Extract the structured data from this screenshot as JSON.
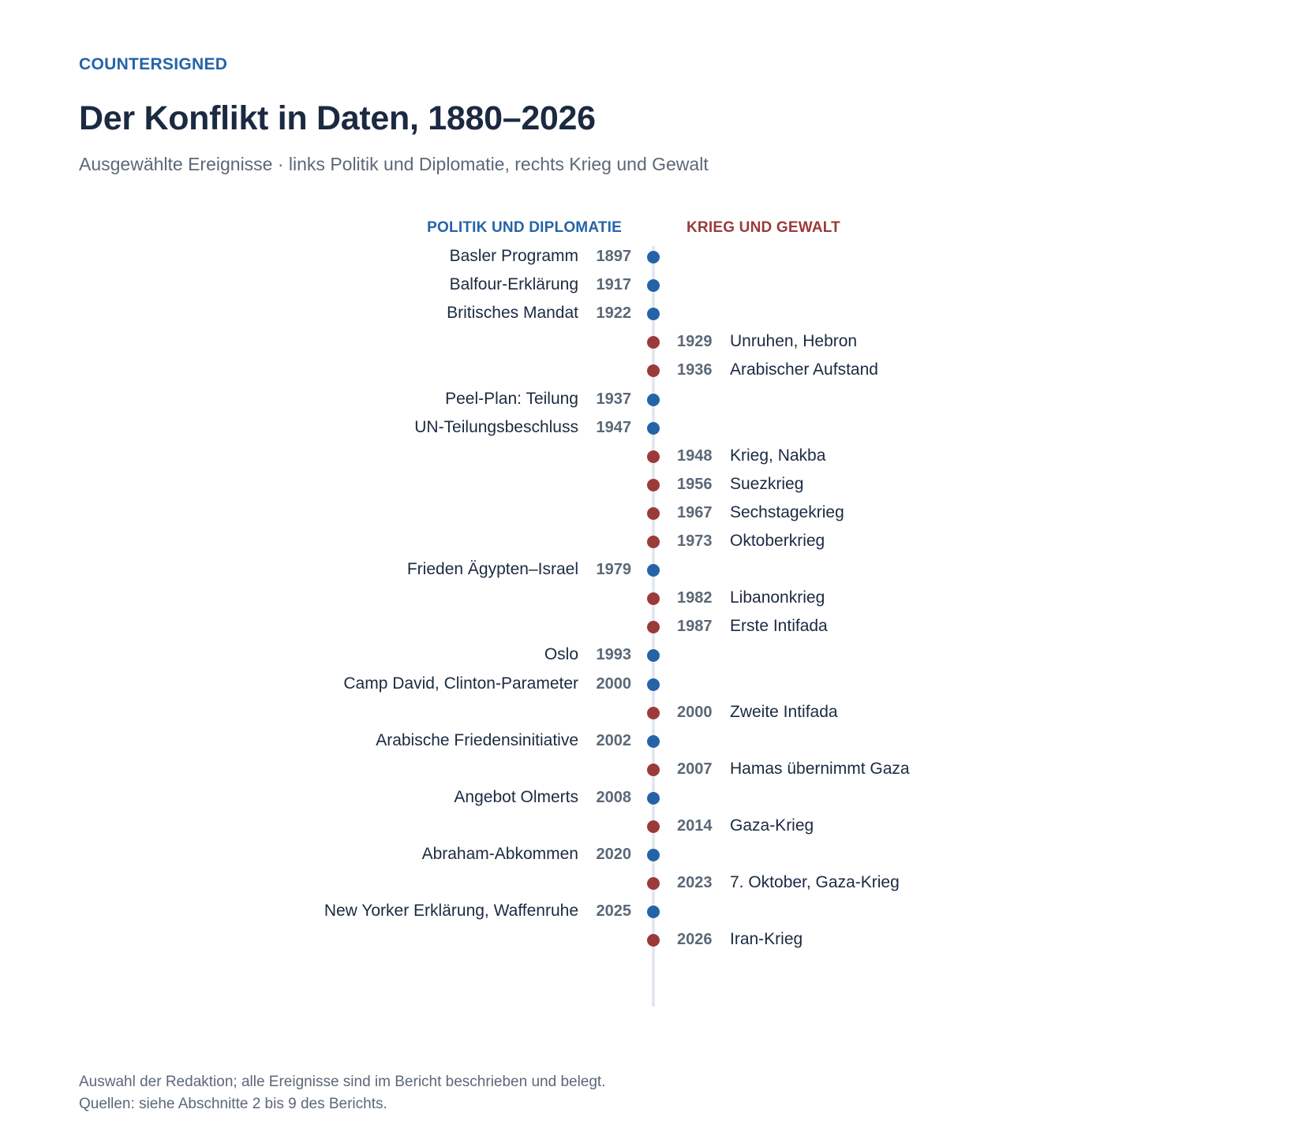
{
  "header": {
    "brand": "COUNTERSIGNED",
    "title": "Der Konflikt in Daten, 1880–2026",
    "subtitle": "Ausgewählte Ereignisse · links Politik und Diplomatie, rechts Krieg und Gewalt"
  },
  "columns": {
    "left": "POLITIK UND DIPLOMATIE",
    "right": "KRIEG UND GEWALT"
  },
  "colors": {
    "politik": "#2563a8",
    "krieg": "#9b3a3a",
    "axis": "#e3e8ef"
  },
  "events": [
    {
      "year": "1897",
      "label": "Basler Programm",
      "side": "politik"
    },
    {
      "year": "1917",
      "label": "Balfour-Erklärung",
      "side": "politik"
    },
    {
      "year": "1922",
      "label": "Britisches Mandat",
      "side": "politik"
    },
    {
      "year": "1929",
      "label": "Unruhen, Hebron",
      "side": "krieg"
    },
    {
      "year": "1936",
      "label": "Arabischer Aufstand",
      "side": "krieg"
    },
    {
      "year": "1937",
      "label": "Peel-Plan: Teilung",
      "side": "politik"
    },
    {
      "year": "1947",
      "label": "UN-Teilungsbeschluss",
      "side": "politik"
    },
    {
      "year": "1948",
      "label": "Krieg, Nakba",
      "side": "krieg"
    },
    {
      "year": "1956",
      "label": "Suezkrieg",
      "side": "krieg"
    },
    {
      "year": "1967",
      "label": "Sechstagekrieg",
      "side": "krieg"
    },
    {
      "year": "1973",
      "label": "Oktoberkrieg",
      "side": "krieg"
    },
    {
      "year": "1979",
      "label": "Frieden Ägypten–Israel",
      "side": "politik"
    },
    {
      "year": "1982",
      "label": "Libanonkrieg",
      "side": "krieg"
    },
    {
      "year": "1987",
      "label": "Erste Intifada",
      "side": "krieg"
    },
    {
      "year": "1993",
      "label": "Oslo",
      "side": "politik"
    },
    {
      "year": "2000",
      "label": "Camp David, Clinton-Parameter",
      "side": "politik"
    },
    {
      "year": "2000",
      "label": "Zweite Intifada",
      "side": "krieg"
    },
    {
      "year": "2002",
      "label": "Arabische Friedensinitiative",
      "side": "politik"
    },
    {
      "year": "2007",
      "label": "Hamas übernimmt Gaza",
      "side": "krieg"
    },
    {
      "year": "2008",
      "label": "Angebot Olmerts",
      "side": "politik"
    },
    {
      "year": "2014",
      "label": "Gaza-Krieg",
      "side": "krieg"
    },
    {
      "year": "2020",
      "label": "Abraham-Abkommen",
      "side": "politik"
    },
    {
      "year": "2023",
      "label": "7. Oktober, Gaza-Krieg",
      "side": "krieg"
    },
    {
      "year": "2025",
      "label": "New Yorker Erklärung, Waffenruhe",
      "side": "politik"
    },
    {
      "year": "2026",
      "label": "Iran-Krieg",
      "side": "krieg"
    }
  ],
  "footer": {
    "line1": "Auswahl der Redaktion; alle Ereignisse sind im Bericht beschrieben und belegt.",
    "line2": "Quellen: siehe Abschnitte 2 bis 9 des Berichts."
  }
}
